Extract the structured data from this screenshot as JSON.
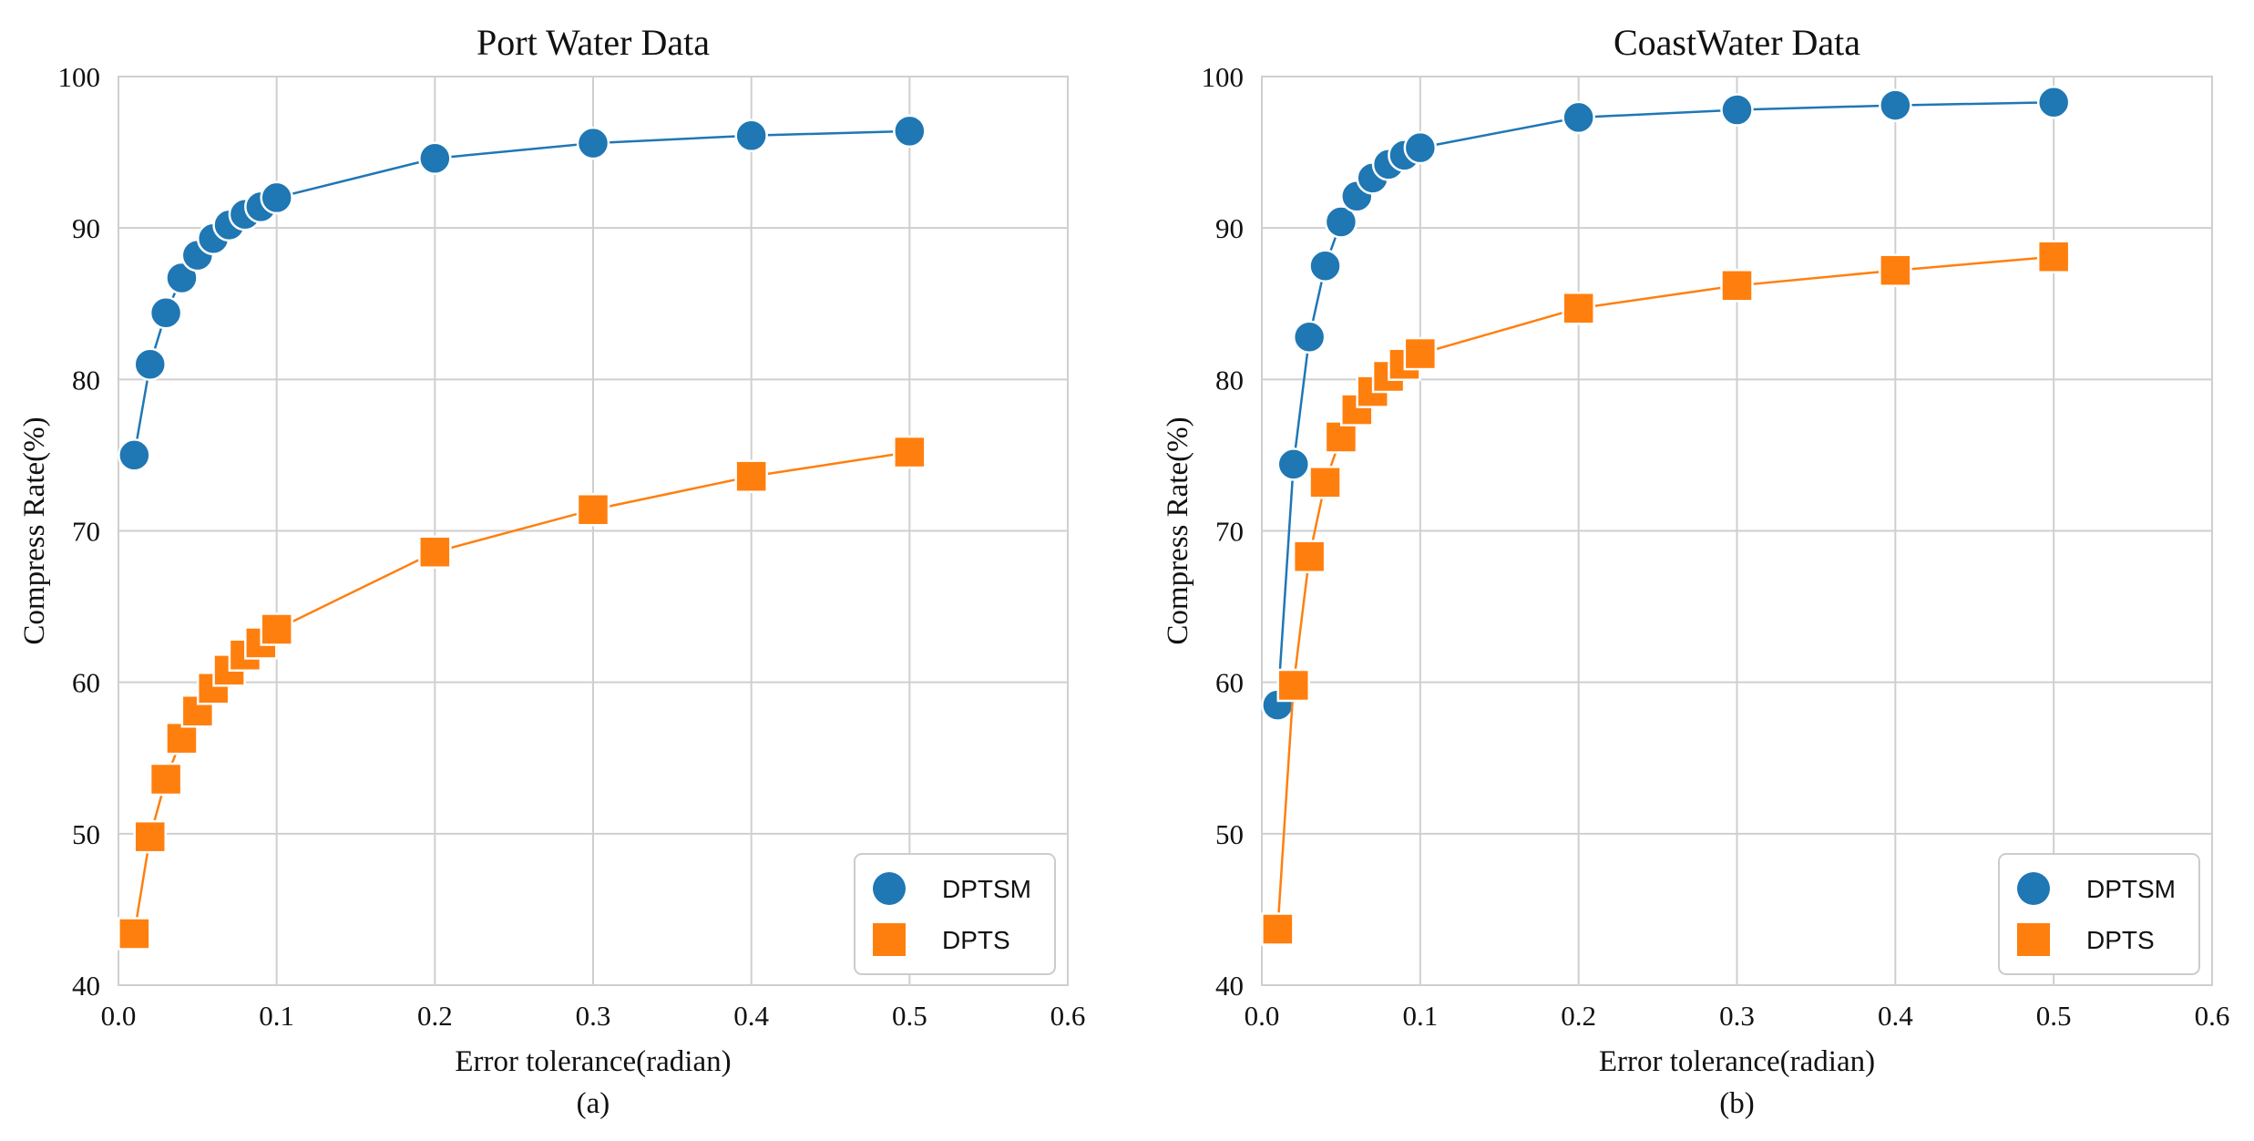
{
  "chart_data": [
    {
      "type": "line",
      "title": "Port Water Data",
      "xlabel": "Error tolerance(radian)",
      "ylabel": "Compress Rate(%)",
      "caption": "(a)",
      "xlim": [
        0,
        0.6
      ],
      "ylim": [
        40,
        100
      ],
      "xticks": [
        0.0,
        0.1,
        0.2,
        0.3,
        0.4,
        0.5,
        0.6
      ],
      "xtick_labels": [
        "0.0",
        "0.1",
        "0.2",
        "0.3",
        "0.4",
        "0.5",
        "0.6"
      ],
      "yticks": [
        40,
        50,
        60,
        70,
        80,
        90,
        100
      ],
      "ytick_labels": [
        "40",
        "50",
        "60",
        "70",
        "80",
        "90",
        "100"
      ],
      "grid": true,
      "legend_position": "bottom-right",
      "series": [
        {
          "name": "DPTSM",
          "marker": "circle",
          "color": "#1f77b4",
          "x": [
            0.01,
            0.02,
            0.03,
            0.04,
            0.05,
            0.06,
            0.07,
            0.08,
            0.09,
            0.1,
            0.2,
            0.3,
            0.4,
            0.5
          ],
          "y": [
            75.0,
            81.0,
            84.4,
            86.7,
            88.2,
            89.3,
            90.2,
            90.9,
            91.4,
            92.0,
            94.6,
            95.6,
            96.1,
            96.4
          ]
        },
        {
          "name": "DPTS",
          "marker": "square",
          "color": "#ff7f0e",
          "x": [
            0.01,
            0.02,
            0.03,
            0.04,
            0.05,
            0.06,
            0.07,
            0.08,
            0.09,
            0.1,
            0.2,
            0.3,
            0.4,
            0.5
          ],
          "y": [
            43.4,
            49.8,
            53.6,
            56.3,
            58.1,
            59.6,
            60.8,
            61.8,
            62.6,
            63.5,
            68.6,
            71.4,
            73.6,
            75.2
          ]
        }
      ]
    },
    {
      "type": "line",
      "title": "CoastWater Data",
      "xlabel": "Error tolerance(radian)",
      "ylabel": "Compress Rate(%)",
      "caption": "(b)",
      "xlim": [
        0,
        0.6
      ],
      "ylim": [
        40,
        100
      ],
      "xticks": [
        0.0,
        0.1,
        0.2,
        0.3,
        0.4,
        0.5,
        0.6
      ],
      "xtick_labels": [
        "0.0",
        "0.1",
        "0.2",
        "0.3",
        "0.4",
        "0.5",
        "0.6"
      ],
      "yticks": [
        40,
        50,
        60,
        70,
        80,
        90,
        100
      ],
      "ytick_labels": [
        "40",
        "50",
        "60",
        "70",
        "80",
        "90",
        "100"
      ],
      "grid": true,
      "legend_position": "bottom-right",
      "series": [
        {
          "name": "DPTSM",
          "marker": "circle",
          "color": "#1f77b4",
          "x": [
            0.01,
            0.02,
            0.03,
            0.04,
            0.05,
            0.06,
            0.07,
            0.08,
            0.09,
            0.1,
            0.2,
            0.3,
            0.4,
            0.5
          ],
          "y": [
            58.5,
            74.4,
            82.8,
            87.5,
            90.4,
            92.1,
            93.3,
            94.2,
            94.8,
            95.3,
            97.3,
            97.8,
            98.1,
            98.3
          ]
        },
        {
          "name": "DPTS",
          "marker": "square",
          "color": "#ff7f0e",
          "x": [
            0.01,
            0.02,
            0.03,
            0.04,
            0.05,
            0.06,
            0.07,
            0.08,
            0.09,
            0.1,
            0.2,
            0.3,
            0.4,
            0.5
          ],
          "y": [
            43.7,
            59.8,
            68.3,
            73.2,
            76.2,
            78.0,
            79.2,
            80.2,
            81.0,
            81.7,
            84.7,
            86.2,
            87.2,
            88.1
          ]
        }
      ]
    }
  ]
}
